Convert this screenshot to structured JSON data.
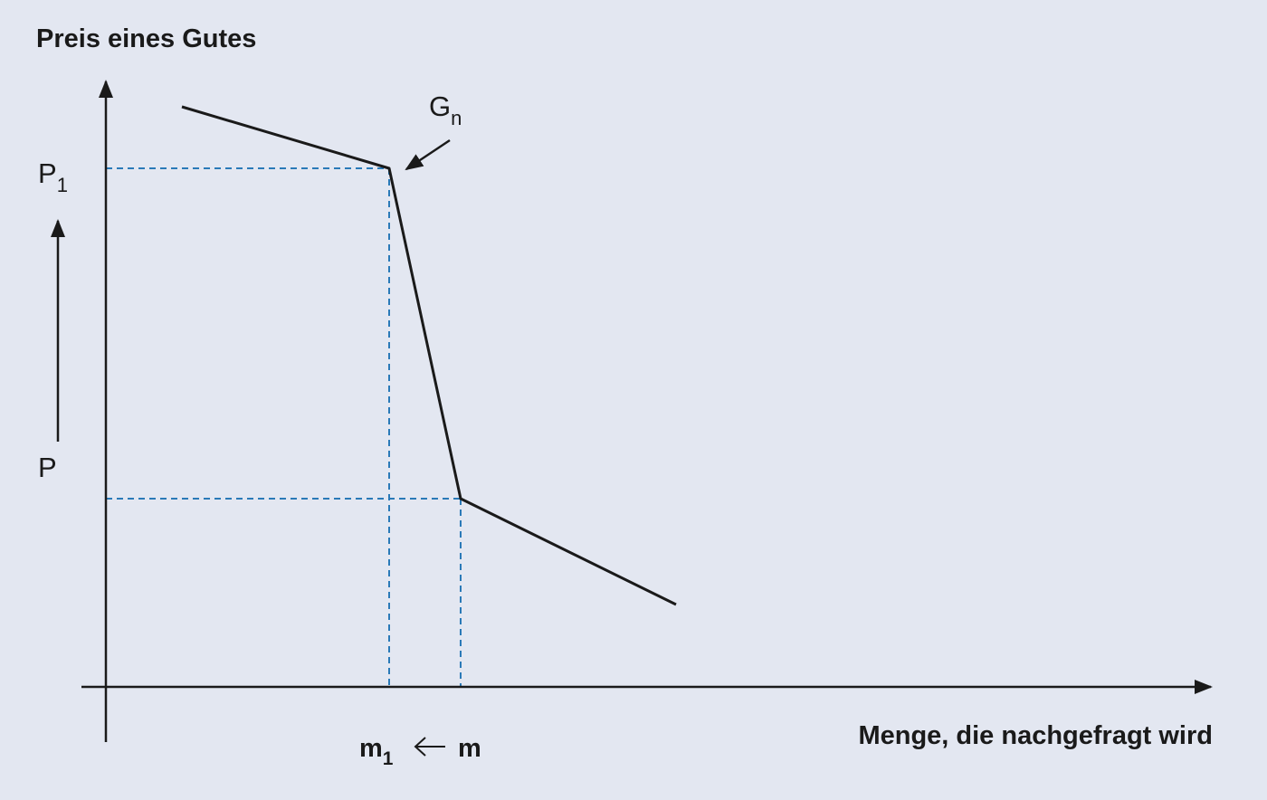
{
  "axes": {
    "y_label": "Preis eines Gutes",
    "x_label": "Menge, die nachgefragt wird"
  },
  "labels": {
    "curve": {
      "main": "G",
      "sub": "n"
    },
    "p1": {
      "main": "P",
      "sub": "1"
    },
    "p": "P",
    "m1": {
      "main": "m",
      "sub": "1"
    },
    "m": "m"
  }
}
